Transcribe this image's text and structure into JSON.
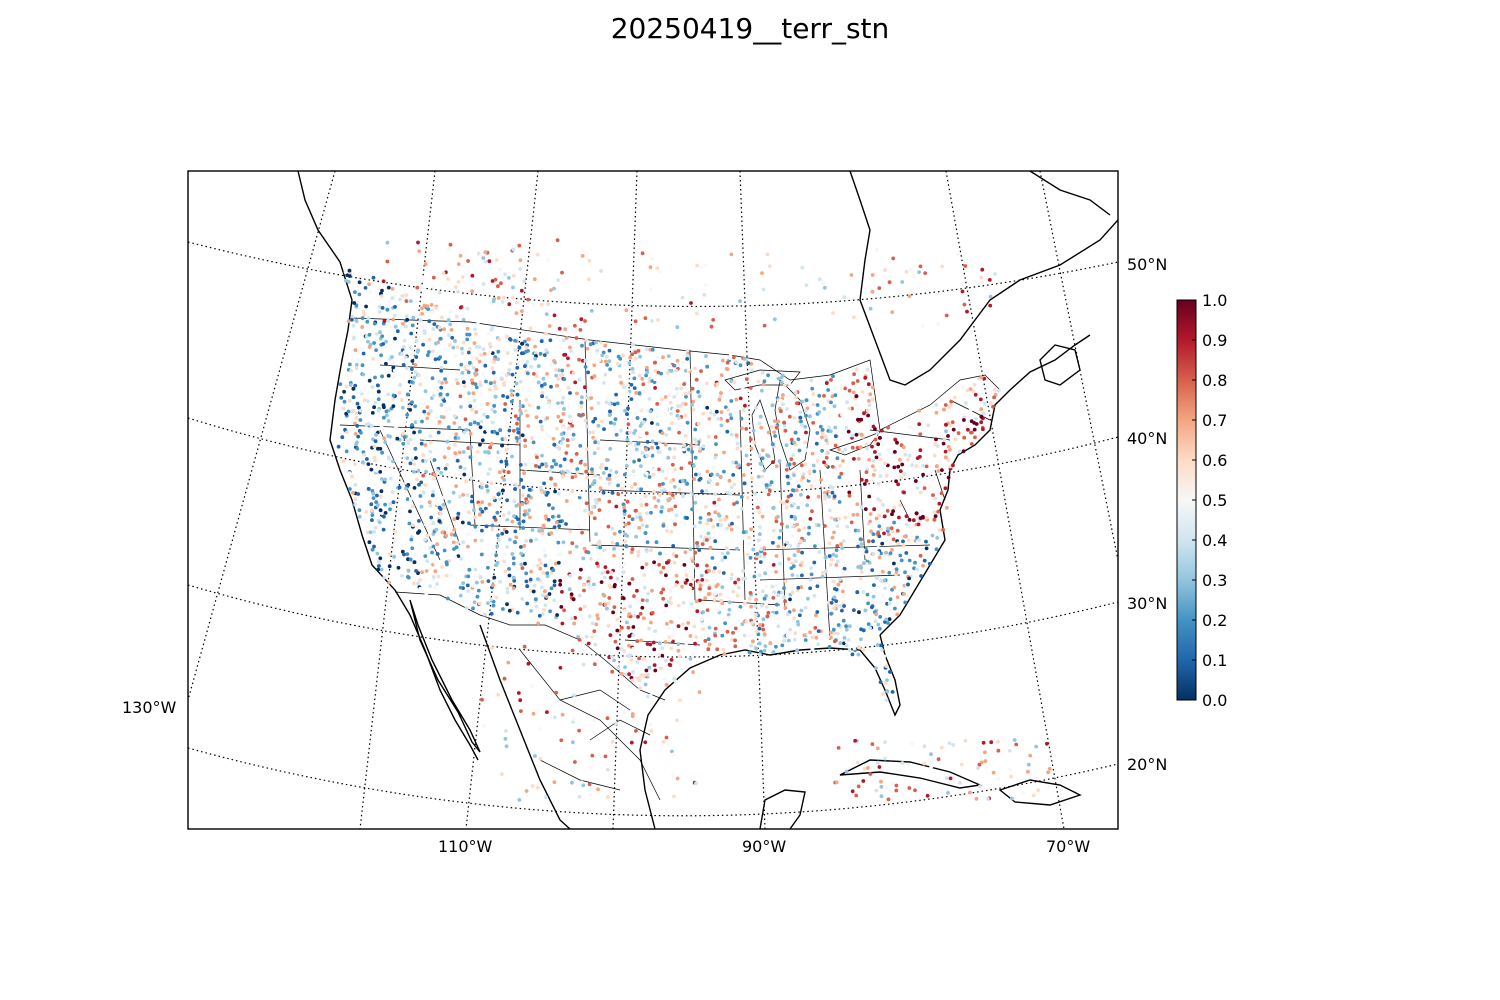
{
  "title": "20250419__terr_stn",
  "map": {
    "projection": "lambert-conformal",
    "region": "CONUS with southern Canada, northern Mexico and the Caribbean",
    "background": "#ffffff",
    "coastline_color": "#000000",
    "graticule_style": "dotted",
    "meridian_labels": [
      "130°W",
      "110°W",
      "90°W",
      "70°W"
    ],
    "parallel_labels": [
      "50°N",
      "40°N",
      "30°N",
      "20°N"
    ]
  },
  "colorbar": {
    "ticks": [
      "1.0",
      "0.9",
      "0.8",
      "0.7",
      "0.6",
      "0.5",
      "0.4",
      "0.3",
      "0.2",
      "0.1",
      "0.0"
    ],
    "range": [
      0.0,
      1.0
    ],
    "colormap": "RdBu_r",
    "colors": [
      "#053061",
      "#2166ac",
      "#4393c3",
      "#92c5de",
      "#d1e5f0",
      "#f7f7f7",
      "#fddbc7",
      "#f4a582",
      "#d6604d",
      "#b2182b",
      "#67001f"
    ]
  },
  "chart_data": {
    "type": "scatter",
    "title": "20250419__terr_stn",
    "xlabel": "",
    "ylabel": "",
    "value_range": [
      0.0,
      1.0
    ],
    "description_of_pattern": "Dense station observations across the contiguous US; high values (red) concentrated in the Northeast/Mid-Atlantic, Ohio Valley, southern Plains and Texas; low values (blue) in the Pacific Northwest, California coast and Rockies; mid-values (white/light blue) across the Great Plains and Southeast."
  }
}
